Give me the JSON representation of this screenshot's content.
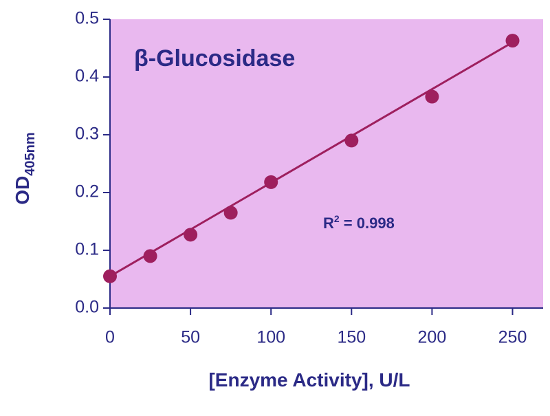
{
  "chart_data": {
    "type": "scatter",
    "title": "β-Glucosidase",
    "x_label": "[Enzyme Activity], U/L",
    "y_label": {
      "main": "OD",
      "subscript": "405nm"
    },
    "annotation": {
      "main": "R",
      "superscript": "2",
      "rest": " = 0.998"
    },
    "series": [
      {
        "name": "β-Glucosidase",
        "color": "#9e1f5e",
        "x": [
          0,
          25,
          50,
          75,
          100,
          150,
          200,
          250
        ],
        "values": [
          0.055,
          0.09,
          0.127,
          0.165,
          0.218,
          0.29,
          0.366,
          0.463
        ]
      }
    ],
    "trendline": {
      "color": "#9e1f5e",
      "x": [
        0,
        250
      ],
      "y": [
        0.055,
        0.46
      ]
    },
    "xlim": [
      0,
      269
    ],
    "ylim": [
      0,
      0.5
    ],
    "xticks": [
      0,
      50,
      100,
      150,
      200,
      250
    ],
    "yticks": [
      {
        "value": 0,
        "label": "0.0"
      },
      0.1,
      0.2,
      0.3,
      0.4,
      0.5
    ],
    "plot_background": "#e9b8ef"
  }
}
